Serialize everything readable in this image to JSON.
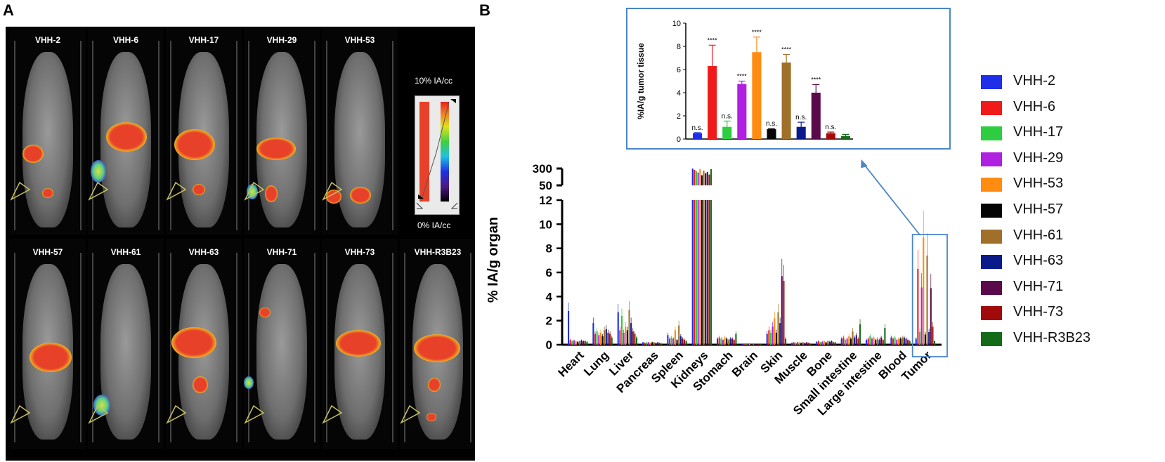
{
  "panels": {
    "a_label": "A",
    "b_label": "B"
  },
  "imaging": {
    "row1_labels": [
      "VHH-2",
      "VHH-6",
      "VHH-17",
      "VHH-29",
      "VHH-53"
    ],
    "row2_labels": [
      "VHH-57",
      "VHH-61",
      "VHH-63",
      "VHH-71",
      "VHH-73",
      "VHH-R3B23"
    ],
    "colorbar": {
      "top_label": "10% IA/cc",
      "bottom_label": "0% IA/cc"
    }
  },
  "colors": {
    "VHH-2": "#1f2ee8",
    "VHH-6": "#f01a1a",
    "VHH-17": "#2ecc40",
    "VHH-29": "#b020e0",
    "VHH-53": "#ff8c10",
    "VHH-57": "#050505",
    "VHH-61": "#a0702a",
    "VHH-63": "#0b1a8a",
    "VHH-71": "#5a0a4a",
    "VHH-73": "#a00a0a",
    "VHH-R3B23": "#156a1a"
  },
  "chart_data": [
    {
      "type": "bar",
      "title": "",
      "ylabel": "%IA/g tumor tissue",
      "xlabel": "",
      "ylim": [
        0,
        10
      ],
      "yticks": [
        0,
        2,
        4,
        6,
        8,
        10
      ],
      "categories": [
        "VHH-2",
        "VHH-6",
        "VHH-17",
        "VHH-29",
        "VHH-53",
        "VHH-57",
        "VHH-61",
        "VHH-63",
        "VHH-71",
        "VHH-73",
        "VHH-R3B23"
      ],
      "values": [
        0.5,
        6.3,
        1.05,
        4.75,
        7.5,
        0.85,
        6.6,
        1.05,
        4.0,
        0.5,
        0.25
      ],
      "errors": [
        0.05,
        1.8,
        0.5,
        0.25,
        1.3,
        0.05,
        0.7,
        0.4,
        0.7,
        0.1,
        0.15
      ],
      "annotations": [
        "n.s.",
        "****",
        "n.s.",
        "****",
        "****",
        "n.s.",
        "****",
        "n.s.",
        "****",
        "n.s.",
        ""
      ]
    },
    {
      "type": "bar",
      "title": "",
      "ylabel": "% IA/g organ",
      "xlabel": "",
      "ylim_lower": [
        0,
        12
      ],
      "ylim_upper": [
        50,
        300
      ],
      "yticks_lower": [
        0,
        2,
        4,
        6,
        8,
        10,
        12
      ],
      "yticks_upper": [
        50,
        300
      ],
      "categories": [
        "Heart",
        "Lung",
        "Liver",
        "Pancreas",
        "Spleen",
        "Kidneys",
        "Stomach",
        "Brain",
        "Skin",
        "Muscle",
        "Bone",
        "Small intestine",
        "Large intestine",
        "Blood",
        "Tumor"
      ],
      "series": [
        {
          "name": "VHH-2",
          "values": [
            2.8,
            1.8,
            2.7,
            0.2,
            0.8,
            300,
            0.5,
            0.05,
            0.9,
            0.15,
            0.25,
            0.5,
            0.4,
            0.6,
            0.5
          ]
        },
        {
          "name": "VHH-6",
          "values": [
            0.4,
            0.9,
            1.2,
            0.15,
            0.5,
            280,
            0.6,
            0.05,
            1.2,
            0.2,
            0.3,
            0.6,
            0.5,
            0.5,
            6.3
          ]
        },
        {
          "name": "VHH-17",
          "values": [
            0.3,
            1.1,
            2.4,
            0.2,
            0.6,
            260,
            0.5,
            0.05,
            1.0,
            0.15,
            0.2,
            0.4,
            0.7,
            0.6,
            1.05
          ]
        },
        {
          "name": "VHH-29",
          "values": [
            0.35,
            0.8,
            1.0,
            0.2,
            0.5,
            240,
            0.4,
            0.05,
            1.5,
            0.2,
            0.25,
            0.5,
            0.5,
            0.4,
            4.75
          ]
        },
        {
          "name": "VHH-53",
          "values": [
            0.3,
            1.0,
            1.5,
            0.15,
            1.2,
            290,
            0.6,
            0.05,
            2.2,
            0.2,
            0.3,
            0.7,
            0.6,
            0.5,
            8.9
          ]
        },
        {
          "name": "VHH-57",
          "values": [
            0.25,
            0.7,
            1.2,
            0.2,
            0.4,
            200,
            0.5,
            0.05,
            1.0,
            0.15,
            0.2,
            0.5,
            0.4,
            0.5,
            0.85
          ]
        },
        {
          "name": "VHH-61",
          "values": [
            0.3,
            1.2,
            2.9,
            0.2,
            1.6,
            270,
            0.4,
            0.05,
            2.7,
            0.2,
            0.3,
            1.1,
            0.5,
            0.6,
            7.4
          ]
        },
        {
          "name": "VHH-63",
          "values": [
            0.35,
            1.3,
            1.8,
            0.15,
            0.7,
            230,
            0.5,
            0.05,
            1.8,
            0.15,
            0.25,
            0.6,
            0.4,
            0.6,
            1.05
          ]
        },
        {
          "name": "VHH-71",
          "values": [
            0.3,
            1.0,
            1.1,
            0.2,
            0.5,
            250,
            0.5,
            0.05,
            5.7,
            0.2,
            0.3,
            0.8,
            0.6,
            0.5,
            4.7
          ]
        },
        {
          "name": "VHH-73",
          "values": [
            0.3,
            0.9,
            0.9,
            0.15,
            0.4,
            210,
            0.4,
            0.05,
            5.3,
            0.15,
            0.2,
            0.5,
            0.4,
            0.4,
            1.5
          ]
        },
        {
          "name": "VHH-R3B23",
          "values": [
            0.25,
            0.6,
            0.6,
            0.1,
            0.3,
            290,
            0.9,
            0.05,
            0.5,
            0.1,
            0.2,
            1.7,
            1.4,
            0.3,
            0.3
          ]
        }
      ],
      "legend_position": "right",
      "annotation": "zoomed inset of Tumor group"
    }
  ]
}
